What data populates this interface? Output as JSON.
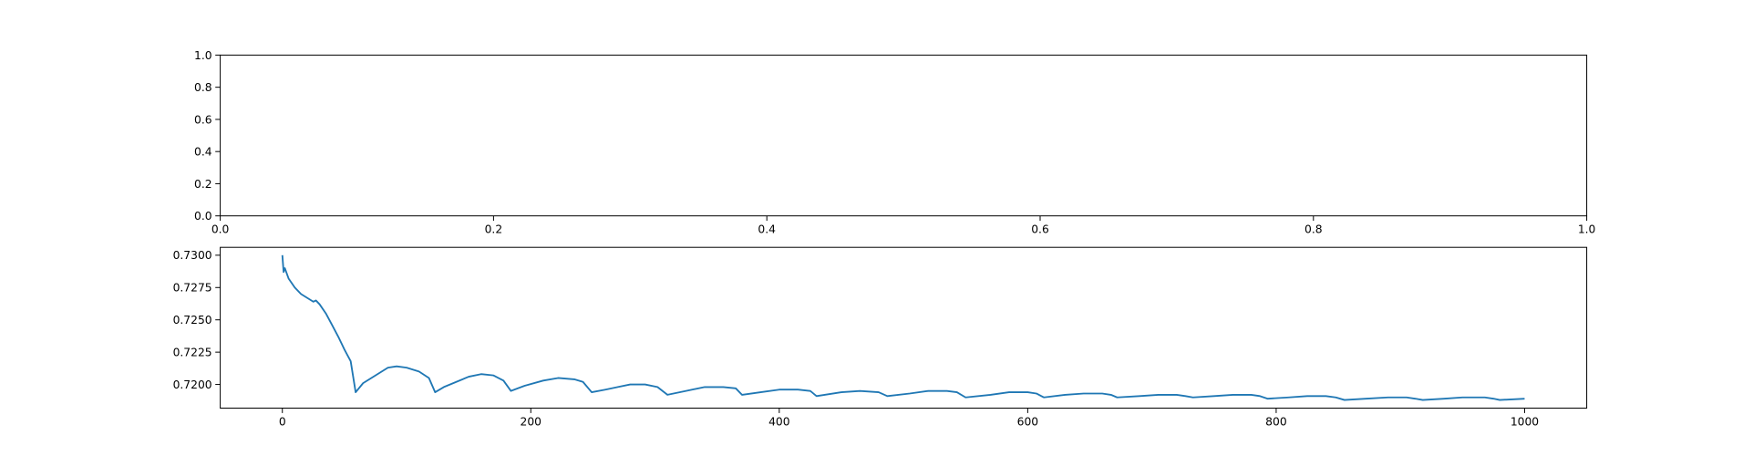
{
  "chart_data": [
    {
      "type": "line",
      "xlim": [
        0,
        1
      ],
      "ylim": [
        0,
        1
      ],
      "xticks": [
        {
          "value": 0,
          "label": "0.0"
        },
        {
          "value": 0.2,
          "label": "0.2"
        },
        {
          "value": 0.4,
          "label": "0.4"
        },
        {
          "value": 0.6,
          "label": "0.6"
        },
        {
          "value": 0.8,
          "label": "0.8"
        },
        {
          "value": 1,
          "label": "1.0"
        }
      ],
      "yticks": [
        {
          "value": 0,
          "label": "0.0"
        },
        {
          "value": 0.2,
          "label": "0.2"
        },
        {
          "value": 0.4,
          "label": "0.4"
        },
        {
          "value": 0.6,
          "label": "0.6"
        },
        {
          "value": 0.8,
          "label": "0.8"
        },
        {
          "value": 1,
          "label": "1.0"
        }
      ],
      "series": []
    },
    {
      "type": "line",
      "xlim": [
        -50,
        1050
      ],
      "ylim": [
        0.71817,
        0.73061
      ],
      "xticks": [
        0,
        200,
        400,
        600,
        800,
        1000
      ],
      "yticks": [
        {
          "value": 0.72,
          "label": "0.7200"
        },
        {
          "value": 0.7225,
          "label": "0.7225"
        },
        {
          "value": 0.725,
          "label": "0.7250"
        },
        {
          "value": 0.7275,
          "label": "0.7275"
        },
        {
          "value": 0.73,
          "label": "0.7300"
        }
      ],
      "series": [
        {
          "color": "#1f77b4",
          "x": [
            0,
            1,
            2,
            5,
            10,
            15,
            20,
            25,
            27,
            30,
            35,
            40,
            45,
            50,
            55,
            59,
            65,
            75,
            85,
            92,
            100,
            110,
            118,
            123,
            130,
            140,
            150,
            160,
            170,
            178,
            184,
            195,
            210,
            222,
            235,
            242,
            249,
            260,
            270,
            280,
            292,
            302,
            310,
            325,
            340,
            355,
            365,
            370,
            385,
            400,
            415,
            425,
            430,
            450,
            465,
            480,
            487,
            505,
            520,
            535,
            543,
            550,
            570,
            585,
            600,
            607,
            613,
            630,
            645,
            660,
            667,
            672,
            690,
            705,
            720,
            727,
            733,
            750,
            765,
            780,
            787,
            793,
            810,
            825,
            840,
            848,
            855,
            872,
            890,
            905,
            912,
            918,
            935,
            950,
            968,
            975,
            980,
            1000
          ],
          "values": [
            0.73,
            0.7287,
            0.729,
            0.7282,
            0.7275,
            0.727,
            0.7267,
            0.7264,
            0.7265,
            0.7262,
            0.7255,
            0.7246,
            0.7237,
            0.7227,
            0.7218,
            0.7194,
            0.7201,
            0.7207,
            0.7213,
            0.7214,
            0.7213,
            0.721,
            0.7205,
            0.7194,
            0.7198,
            0.7202,
            0.7206,
            0.7208,
            0.7207,
            0.7203,
            0.7195,
            0.7199,
            0.7203,
            0.7205,
            0.7204,
            0.7202,
            0.7194,
            0.7196,
            0.7198,
            0.72,
            0.72,
            0.7198,
            0.7192,
            0.7195,
            0.7198,
            0.7198,
            0.7197,
            0.7192,
            0.7194,
            0.7196,
            0.7196,
            0.7195,
            0.7191,
            0.7194,
            0.7195,
            0.7194,
            0.7191,
            0.7193,
            0.7195,
            0.7195,
            0.7194,
            0.719,
            0.7192,
            0.7194,
            0.7194,
            0.7193,
            0.719,
            0.7192,
            0.7193,
            0.7193,
            0.7192,
            0.719,
            0.7191,
            0.7192,
            0.7192,
            0.7191,
            0.719,
            0.7191,
            0.7192,
            0.7192,
            0.7191,
            0.7189,
            0.719,
            0.7191,
            0.7191,
            0.719,
            0.7188,
            0.7189,
            0.719,
            0.719,
            0.7189,
            0.7188,
            0.7189,
            0.719,
            0.719,
            0.7189,
            0.7188,
            0.7189
          ]
        }
      ]
    }
  ]
}
